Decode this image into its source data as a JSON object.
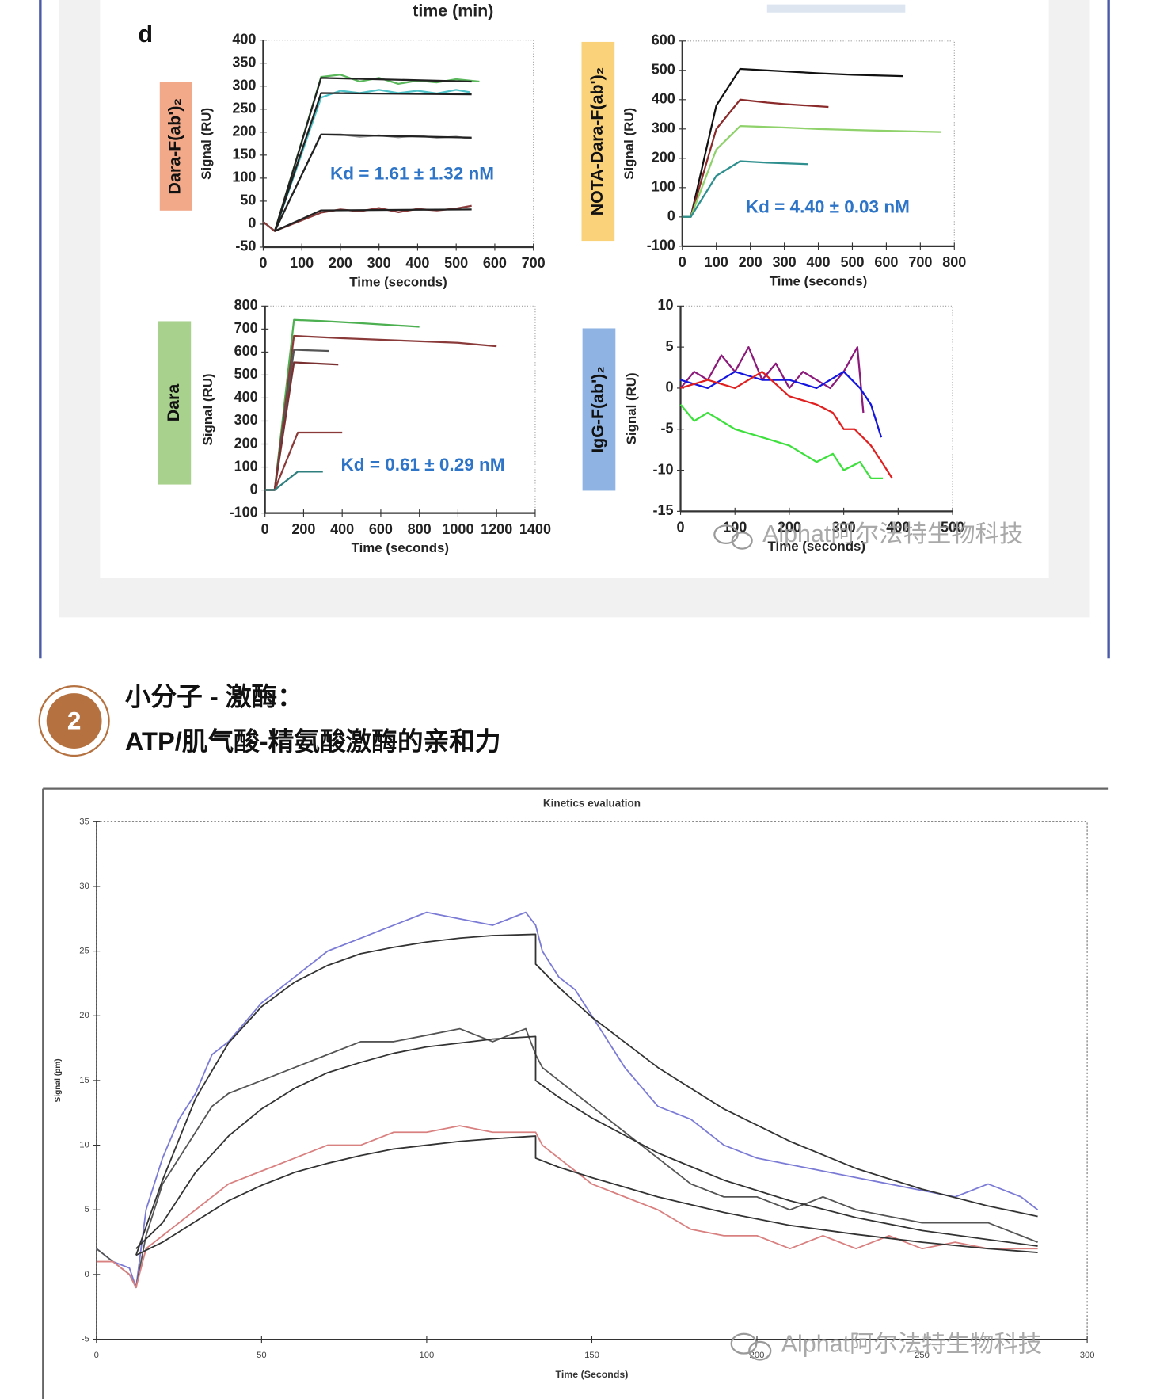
{
  "page": {
    "caption_above": "time (min)",
    "panel_letter": "d",
    "section_number": "2",
    "heading": [
      "小分子 - 激酶：",
      "ATP/肌气酸-精氨酸激酶的亲和力"
    ],
    "watermarks": [
      "Alphat阿尔法特生物科技",
      "Alphat阿尔法特生物科技"
    ]
  },
  "chart_data": [
    {
      "type": "line",
      "title": "Dara-F(ab')₂",
      "label_color": "#f2a98a",
      "ylabel": "Signal (RU)",
      "xlabel": "Time (seconds)",
      "annotation": "Kd = 1.61 ± 1.32 nM",
      "xlim": [
        0,
        700
      ],
      "xticks": [
        0,
        100,
        200,
        300,
        400,
        500,
        600,
        700
      ],
      "ylim": [
        -50,
        400
      ],
      "yticks": [
        -50,
        0,
        50,
        100,
        150,
        200,
        250,
        300,
        350,
        400
      ],
      "series": [
        {
          "color": "#5cb85c",
          "x": [
            0,
            30,
            150,
            200,
            250,
            300,
            350,
            400,
            450,
            500,
            560
          ],
          "values": [
            5,
            -15,
            320,
            325,
            310,
            318,
            305,
            312,
            308,
            315,
            310
          ]
        },
        {
          "color": "#4fc3c8",
          "x": [
            0,
            30,
            150,
            200,
            250,
            300,
            350,
            400,
            450,
            500,
            535
          ],
          "values": [
            5,
            -15,
            275,
            290,
            285,
            292,
            285,
            290,
            284,
            292,
            287
          ]
        },
        {
          "color": "#8a8a8a",
          "x": [
            0,
            30,
            150,
            200,
            250,
            300,
            350,
            400,
            450,
            500,
            540
          ],
          "values": [
            5,
            -15,
            195,
            195,
            190,
            193,
            189,
            192,
            188,
            190,
            186
          ]
        },
        {
          "color": "#8b3a3a",
          "x": [
            0,
            30,
            150,
            200,
            250,
            300,
            350,
            400,
            450,
            500,
            540
          ],
          "values": [
            5,
            -15,
            25,
            32,
            28,
            35,
            26,
            33,
            30,
            34,
            40
          ]
        },
        {
          "color": "#222222",
          "x": [
            30,
            150,
            540
          ],
          "values": [
            -15,
            318,
            310
          ]
        },
        {
          "color": "#222222",
          "x": [
            30,
            150,
            540
          ],
          "values": [
            -15,
            285,
            282
          ]
        },
        {
          "color": "#222222",
          "x": [
            30,
            150,
            540
          ],
          "values": [
            -15,
            195,
            188
          ]
        },
        {
          "color": "#222222",
          "x": [
            30,
            150,
            540
          ],
          "values": [
            -15,
            30,
            32
          ]
        }
      ]
    },
    {
      "type": "line",
      "title": "NOTA-Dara-F(ab')₂",
      "label_color": "#f9d27a",
      "ylabel": "Signal (RU)",
      "xlabel": "Time (seconds)",
      "annotation": "Kd = 4.40 ± 0.03 nM",
      "xlim": [
        0,
        800
      ],
      "xticks": [
        0,
        100,
        200,
        300,
        400,
        500,
        600,
        700,
        800
      ],
      "ylim": [
        -100,
        600
      ],
      "yticks": [
        -100,
        0,
        100,
        200,
        300,
        400,
        500,
        600
      ],
      "series": [
        {
          "color": "#111111",
          "x": [
            0,
            25,
            100,
            170,
            250,
            400,
            500,
            650
          ],
          "values": [
            0,
            0,
            380,
            505,
            500,
            490,
            485,
            480
          ]
        },
        {
          "color": "#8b2a2a",
          "x": [
            0,
            25,
            100,
            170,
            250,
            300,
            430
          ],
          "values": [
            0,
            0,
            300,
            400,
            390,
            385,
            375
          ]
        },
        {
          "color": "#8fd16a",
          "x": [
            0,
            25,
            100,
            170,
            300,
            400,
            550,
            760
          ],
          "values": [
            0,
            0,
            230,
            310,
            305,
            300,
            295,
            290
          ]
        },
        {
          "color": "#2f8f8f",
          "x": [
            0,
            25,
            100,
            170,
            250,
            370
          ],
          "values": [
            0,
            0,
            140,
            190,
            185,
            180
          ]
        }
      ]
    },
    {
      "type": "line",
      "title": "Dara",
      "label_color": "#a9d18e",
      "ylabel": "Signal (RU)",
      "xlabel": "Time (seconds)",
      "annotation": "Kd = 0.61 ± 0.29 nM",
      "xlim": [
        0,
        1400
      ],
      "xticks": [
        0,
        200,
        400,
        600,
        800,
        1000,
        1200,
        1400
      ],
      "ylim": [
        -100,
        800
      ],
      "yticks": [
        -100,
        0,
        100,
        200,
        300,
        400,
        500,
        600,
        700,
        800
      ],
      "series": [
        {
          "color": "#4caf50",
          "x": [
            0,
            50,
            150,
            300,
            500,
            800
          ],
          "values": [
            0,
            0,
            740,
            735,
            725,
            710
          ]
        },
        {
          "color": "#8b3a3a",
          "x": [
            0,
            50,
            150,
            400,
            700,
            1000,
            1200
          ],
          "values": [
            0,
            0,
            670,
            660,
            650,
            640,
            625
          ]
        },
        {
          "color": "#555555",
          "x": [
            0,
            50,
            150,
            330
          ],
          "values": [
            0,
            0,
            610,
            605
          ]
        },
        {
          "color": "#7a3030",
          "x": [
            0,
            50,
            150,
            380
          ],
          "values": [
            0,
            0,
            555,
            545
          ]
        },
        {
          "color": "#8b3a3a",
          "x": [
            0,
            50,
            170,
            400
          ],
          "values": [
            0,
            0,
            250,
            250
          ]
        },
        {
          "color": "#2f7f7f",
          "x": [
            0,
            50,
            170,
            300
          ],
          "values": [
            0,
            0,
            80,
            80
          ]
        }
      ]
    },
    {
      "type": "line",
      "title": "IgG-F(ab')₂",
      "label_color": "#8fb4e3",
      "ylabel": "Signal (RU)",
      "xlabel": "Time (seconds)",
      "xlim": [
        0,
        500
      ],
      "xticks": [
        0,
        100,
        200,
        300,
        400,
        500
      ],
      "ylim": [
        -15,
        10
      ],
      "yticks": [
        -15,
        -10,
        -5,
        0,
        5,
        10
      ],
      "series": [
        {
          "color": "#8b1a7a",
          "x": [
            0,
            25,
            50,
            75,
            100,
            125,
            150,
            175,
            200,
            225,
            250,
            275,
            300,
            325,
            336
          ],
          "values": [
            0,
            2,
            1,
            4,
            2,
            5,
            1,
            3,
            0,
            2,
            1,
            0,
            2,
            5,
            -3
          ]
        },
        {
          "color": "#1515e0",
          "x": [
            0,
            50,
            100,
            150,
            200,
            250,
            300,
            330,
            350,
            369
          ],
          "values": [
            1,
            0,
            2,
            1,
            1,
            0,
            2,
            0,
            -2,
            -6
          ]
        },
        {
          "color": "#e02020",
          "x": [
            0,
            50,
            100,
            150,
            200,
            250,
            280,
            300,
            320,
            350,
            370,
            389
          ],
          "values": [
            0,
            1,
            0,
            2,
            -1,
            -2,
            -3,
            -5,
            -5,
            -7,
            -9,
            -11
          ]
        },
        {
          "color": "#3ee03e",
          "x": [
            0,
            25,
            50,
            100,
            150,
            200,
            250,
            280,
            300,
            330,
            350,
            372
          ],
          "values": [
            -2,
            -4,
            -3,
            -5,
            -6,
            -7,
            -9,
            -8,
            -10,
            -9,
            -11,
            -11
          ]
        }
      ]
    },
    {
      "type": "line",
      "title": "Kinetics evaluation",
      "ylabel": "Signal (pm)",
      "xlabel": "Time (Seconds)",
      "xlim": [
        0,
        300
      ],
      "xticks": [
        0,
        50,
        100,
        150,
        200,
        250,
        300
      ],
      "ylim": [
        -5,
        35
      ],
      "yticks": [
        -5,
        0,
        5,
        10,
        15,
        20,
        25,
        30,
        35
      ],
      "series": [
        {
          "color": "#7b7bd6",
          "x": [
            0,
            5,
            10,
            12,
            15,
            20,
            25,
            30,
            35,
            40,
            50,
            60,
            70,
            80,
            90,
            100,
            110,
            120,
            130,
            133,
            135,
            140,
            145,
            150,
            160,
            170,
            180,
            190,
            200,
            210,
            220,
            230,
            240,
            250,
            260,
            270,
            280,
            285
          ],
          "values": [
            2,
            1,
            0.5,
            -1,
            5,
            9,
            12,
            14,
            17,
            18,
            21,
            23,
            25,
            26,
            27,
            28,
            27.5,
            27,
            28,
            27,
            25,
            23,
            22,
            20,
            16,
            13,
            12,
            10,
            9,
            8.5,
            8,
            7.5,
            7,
            6.5,
            6,
            7,
            6,
            5
          ]
        },
        {
          "color": "#555555",
          "x": [
            0,
            5,
            10,
            12,
            15,
            20,
            25,
            30,
            35,
            40,
            50,
            60,
            70,
            80,
            90,
            100,
            110,
            120,
            130,
            133,
            135,
            140,
            145,
            150,
            160,
            170,
            180,
            190,
            200,
            210,
            220,
            230,
            240,
            250,
            260,
            270,
            280,
            285
          ],
          "values": [
            2,
            1,
            0,
            -1,
            3,
            7,
            9,
            11,
            13,
            14,
            15,
            16,
            17,
            18,
            18,
            18.5,
            19,
            18,
            19,
            17,
            16,
            15,
            14,
            13,
            11,
            9,
            7,
            6,
            6,
            5,
            6,
            5,
            4.5,
            4,
            4,
            4,
            3,
            2.5
          ]
        },
        {
          "color": "#d98080",
          "x": [
            0,
            5,
            10,
            12,
            15,
            20,
            25,
            30,
            35,
            40,
            50,
            60,
            70,
            80,
            90,
            100,
            110,
            120,
            130,
            133,
            135,
            140,
            145,
            150,
            160,
            170,
            180,
            190,
            200,
            210,
            220,
            230,
            240,
            250,
            260,
            270,
            280,
            285
          ],
          "values": [
            1,
            1,
            0,
            -1,
            2,
            3,
            4,
            5,
            6,
            7,
            8,
            9,
            10,
            10,
            11,
            11,
            11.5,
            11,
            11,
            11,
            10,
            9,
            8,
            7,
            6,
            5,
            3.5,
            3,
            3,
            2,
            3,
            2,
            3,
            2,
            2.5,
            2,
            2,
            2
          ]
        },
        {
          "color": "#333333",
          "x": [
            12,
            20,
            30,
            40,
            50,
            60,
            70,
            80,
            90,
            100,
            110,
            120,
            133,
            133,
            140,
            150,
            170,
            190,
            210,
            230,
            250,
            270,
            285
          ],
          "values": [
            1.5,
            7.3,
            13.6,
            17.9,
            20.7,
            22.6,
            23.9,
            24.8,
            25.3,
            25.7,
            26,
            26.2,
            26.3,
            24,
            22.2,
            19.9,
            16,
            12.8,
            10.3,
            8.2,
            6.6,
            5.3,
            4.5
          ]
        },
        {
          "color": "#333333",
          "x": [
            12,
            20,
            30,
            40,
            50,
            60,
            70,
            80,
            90,
            100,
            110,
            120,
            133,
            133,
            140,
            150,
            170,
            190,
            210,
            230,
            250,
            270,
            285
          ],
          "values": [
            2,
            4,
            7.9,
            10.7,
            12.8,
            14.4,
            15.6,
            16.4,
            17.1,
            17.6,
            17.9,
            18.2,
            18.4,
            15,
            13.7,
            12.1,
            9.4,
            7.3,
            5.7,
            4.4,
            3.4,
            2.7,
            2.2
          ]
        },
        {
          "color": "#333333",
          "x": [
            12,
            20,
            30,
            40,
            50,
            60,
            70,
            80,
            90,
            100,
            110,
            120,
            133,
            133,
            140,
            150,
            170,
            190,
            210,
            230,
            250,
            270,
            285
          ],
          "values": [
            1.5,
            2.5,
            4.1,
            5.7,
            6.9,
            7.9,
            8.6,
            9.2,
            9.7,
            10,
            10.3,
            10.5,
            10.7,
            9,
            8.3,
            7.5,
            6,
            4.8,
            3.8,
            3.1,
            2.5,
            2,
            1.7
          ]
        }
      ]
    }
  ]
}
